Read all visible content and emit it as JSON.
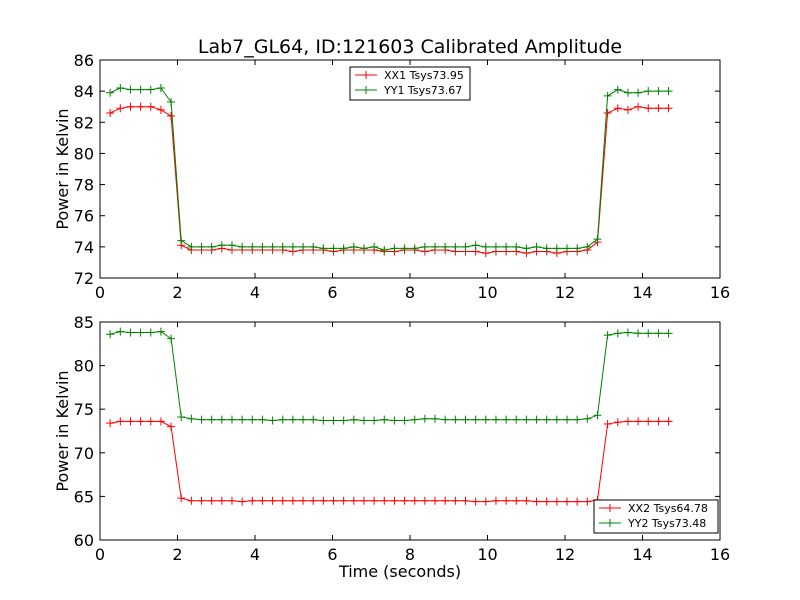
{
  "figure": {
    "title": "Lab7_GL64, ID:121603 Calibrated Amplitude"
  },
  "chart_data": [
    {
      "type": "line",
      "title": "Lab7_GL64, ID:121603 Calibrated Amplitude",
      "xlabel": "",
      "ylabel": "Power in Kelvin",
      "xlim": [
        0,
        16
      ],
      "ylim": [
        72,
        86
      ],
      "xticks": [
        0,
        2,
        4,
        6,
        8,
        10,
        12,
        14,
        16
      ],
      "yticks": [
        72,
        74,
        76,
        78,
        80,
        82,
        84,
        86
      ],
      "grid": false,
      "legend": "top-center",
      "x": [
        0.262,
        0.524,
        0.786,
        1.048,
        1.31,
        1.572,
        1.834,
        2.096,
        2.358,
        2.62,
        2.882,
        3.144,
        3.406,
        3.668,
        3.93,
        4.192,
        4.454,
        4.716,
        4.978,
        5.24,
        5.502,
        5.764,
        6.026,
        6.288,
        6.55,
        6.812,
        7.074,
        7.336,
        7.598,
        7.86,
        8.122,
        8.384,
        8.646,
        8.908,
        9.17,
        9.432,
        9.694,
        9.956,
        10.218,
        10.48,
        10.742,
        11.004,
        11.266,
        11.528,
        11.79,
        12.052,
        12.314,
        12.576,
        12.838,
        13.1,
        13.362,
        13.624,
        13.886,
        14.148,
        14.41,
        14.672
      ],
      "series": [
        {
          "name": "XX1 Tsys73.95",
          "color": "#ff0000",
          "values": [
            82.6,
            82.9,
            83.0,
            83.0,
            83.0,
            82.8,
            82.4,
            74.1,
            73.8,
            73.8,
            73.8,
            73.9,
            73.8,
            73.8,
            73.8,
            73.8,
            73.8,
            73.8,
            73.7,
            73.8,
            73.8,
            73.8,
            73.7,
            73.8,
            73.8,
            73.8,
            73.8,
            73.7,
            73.7,
            73.8,
            73.8,
            73.7,
            73.8,
            73.8,
            73.7,
            73.7,
            73.7,
            73.6,
            73.7,
            73.7,
            73.7,
            73.6,
            73.7,
            73.7,
            73.6,
            73.7,
            73.7,
            73.8,
            74.3,
            82.6,
            82.9,
            82.8,
            83.0,
            82.9,
            82.9,
            82.9
          ]
        },
        {
          "name": "YY1 Tsys73.67",
          "color": "#008000",
          "values": [
            83.9,
            84.2,
            84.1,
            84.1,
            84.1,
            84.2,
            83.3,
            74.4,
            74.0,
            74.0,
            74.0,
            74.1,
            74.1,
            74.0,
            74.0,
            74.0,
            74.0,
            74.0,
            74.0,
            74.0,
            74.0,
            73.9,
            73.9,
            73.9,
            74.0,
            73.9,
            74.0,
            73.8,
            73.9,
            73.9,
            73.9,
            74.0,
            74.0,
            74.0,
            74.0,
            74.0,
            74.1,
            74.0,
            74.0,
            74.0,
            74.0,
            73.9,
            74.0,
            73.9,
            73.9,
            73.9,
            73.9,
            74.0,
            74.5,
            83.7,
            84.1,
            83.9,
            83.9,
            84.0,
            84.0,
            84.0
          ]
        }
      ]
    },
    {
      "type": "line",
      "title": "",
      "xlabel": "Time (seconds)",
      "ylabel": "Power in Kelvin",
      "xlim": [
        0,
        16
      ],
      "ylim": [
        60,
        85
      ],
      "xticks": [
        0,
        2,
        4,
        6,
        8,
        10,
        12,
        14,
        16
      ],
      "yticks": [
        60,
        65,
        70,
        75,
        80,
        85
      ],
      "grid": false,
      "legend": "bottom-right",
      "x": [
        0.262,
        0.524,
        0.786,
        1.048,
        1.31,
        1.572,
        1.834,
        2.096,
        2.358,
        2.62,
        2.882,
        3.144,
        3.406,
        3.668,
        3.93,
        4.192,
        4.454,
        4.716,
        4.978,
        5.24,
        5.502,
        5.764,
        6.026,
        6.288,
        6.55,
        6.812,
        7.074,
        7.336,
        7.598,
        7.86,
        8.122,
        8.384,
        8.646,
        8.908,
        9.17,
        9.432,
        9.694,
        9.956,
        10.218,
        10.48,
        10.742,
        11.004,
        11.266,
        11.528,
        11.79,
        12.052,
        12.314,
        12.576,
        12.838,
        13.1,
        13.362,
        13.624,
        13.886,
        14.148,
        14.41,
        14.672
      ],
      "series": [
        {
          "name": "XX2 Tsys64.78",
          "color": "#ff0000",
          "values": [
            73.4,
            73.6,
            73.6,
            73.6,
            73.6,
            73.6,
            73.0,
            64.8,
            64.5,
            64.5,
            64.5,
            64.5,
            64.5,
            64.4,
            64.5,
            64.5,
            64.5,
            64.5,
            64.5,
            64.5,
            64.5,
            64.5,
            64.5,
            64.5,
            64.5,
            64.5,
            64.5,
            64.5,
            64.5,
            64.5,
            64.5,
            64.5,
            64.5,
            64.5,
            64.5,
            64.5,
            64.4,
            64.4,
            64.5,
            64.5,
            64.5,
            64.5,
            64.4,
            64.4,
            64.4,
            64.4,
            64.4,
            64.4,
            64.6,
            73.3,
            73.5,
            73.6,
            73.6,
            73.6,
            73.6,
            73.6
          ]
        },
        {
          "name": "YY2 Tsys73.48",
          "color": "#008000",
          "values": [
            83.6,
            83.9,
            83.8,
            83.8,
            83.8,
            83.9,
            83.1,
            74.1,
            73.9,
            73.8,
            73.8,
            73.8,
            73.8,
            73.8,
            73.8,
            73.8,
            73.7,
            73.8,
            73.8,
            73.8,
            73.8,
            73.7,
            73.7,
            73.7,
            73.8,
            73.7,
            73.7,
            73.8,
            73.7,
            73.7,
            73.8,
            73.9,
            73.9,
            73.8,
            73.8,
            73.8,
            73.8,
            73.8,
            73.8,
            73.8,
            73.8,
            73.8,
            73.8,
            73.8,
            73.8,
            73.8,
            73.8,
            73.9,
            74.3,
            83.5,
            83.7,
            83.8,
            83.7,
            83.7,
            83.7,
            83.7
          ]
        }
      ]
    }
  ]
}
